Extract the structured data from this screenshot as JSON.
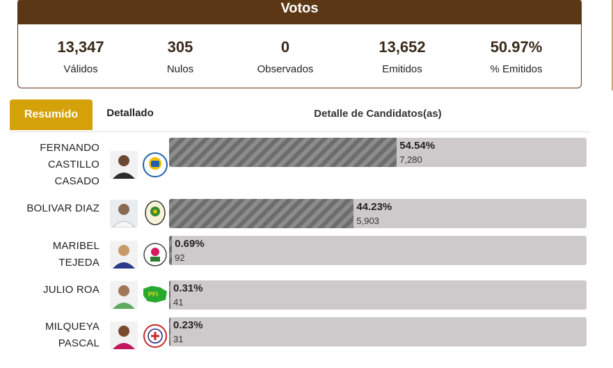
{
  "votes": {
    "title": "Votos",
    "stats": [
      {
        "value": "13,347",
        "label": "Válidos"
      },
      {
        "value": "305",
        "label": "Nulos"
      },
      {
        "value": "0",
        "label": "Observados"
      },
      {
        "value": "13,652",
        "label": "Emitidos"
      },
      {
        "value": "50.97%",
        "label": "% Emitidos"
      }
    ]
  },
  "tabs": {
    "resumido": "Resumido",
    "detallado": "Detallado",
    "detail_title": "Detalle de Candidatos(as)"
  },
  "candidates": [
    {
      "name_lines": [
        "FERNANDO",
        "CASTILLO",
        "CASADO"
      ],
      "percent_label": "54.54%",
      "percent": 54.54,
      "votes": "7,280",
      "photo": "candidate-photo",
      "logo": "party-logo-psm"
    },
    {
      "name_lines": [
        "BOLIVAR DIAZ"
      ],
      "percent_label": "44.23%",
      "percent": 44.23,
      "votes": "5,903",
      "photo": "candidate-photo",
      "logo": "party-logo-oval"
    },
    {
      "name_lines": [
        "MARIBEL",
        "TEJEDA"
      ],
      "percent_label": "0.69%",
      "percent": 0.69,
      "votes": "92",
      "photo": "candidate-photo",
      "logo": "party-logo-round"
    },
    {
      "name_lines": [
        "JULIO ROA"
      ],
      "percent_label": "0.31%",
      "percent": 0.31,
      "votes": "41",
      "photo": "candidate-photo",
      "logo": "party-logo-pfi"
    },
    {
      "name_lines": [
        "MILQUEYA",
        "PASCAL"
      ],
      "percent_label": "0.23%",
      "percent": 0.23,
      "votes": "31",
      "photo": "candidate-photo",
      "logo": "party-logo-seal"
    }
  ],
  "colors": {
    "header": "#5c3716",
    "tab_active": "#d4a10a",
    "bar_track": "#cecacb",
    "bar_fill": "#777777"
  }
}
